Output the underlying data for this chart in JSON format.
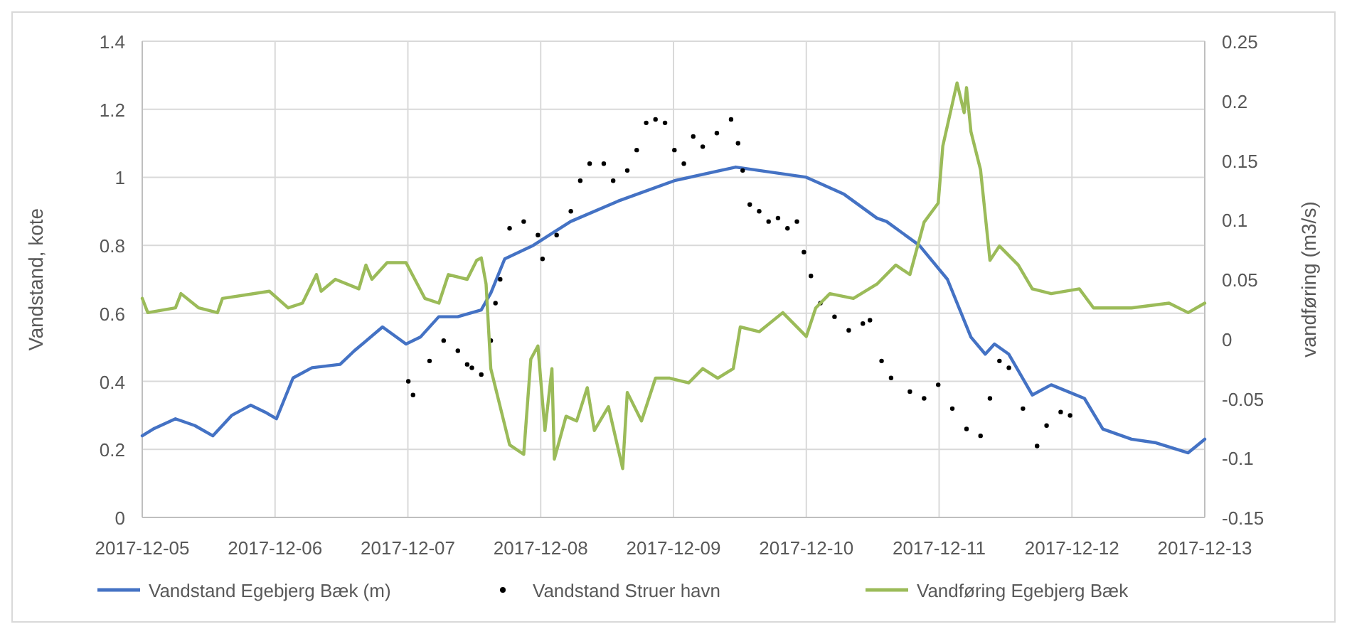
{
  "chart_data": {
    "type": "line",
    "ylabel": "Vandstand, kote",
    "y2label": "vandføring (m3/s)",
    "xlim": [
      "2017-12-05",
      "2017-12-13"
    ],
    "xticks": [
      "2017-12-05",
      "2017-12-06",
      "2017-12-07",
      "2017-12-08",
      "2017-12-09",
      "2017-12-10",
      "2017-12-11",
      "2017-12-12",
      "2017-12-13"
    ],
    "ylim": [
      0,
      1.4
    ],
    "yticks": [
      0,
      0.2,
      0.4,
      0.6,
      0.8,
      1,
      1.2,
      1.4
    ],
    "y2lim": [
      -0.15,
      0.25
    ],
    "y2ticks": [
      -0.15,
      -0.1,
      -0.05,
      0,
      0.05,
      0.1,
      0.15,
      0.2,
      0.25
    ],
    "grid": true,
    "legend": "bottom",
    "series": [
      {
        "name": "Vandstand Egebjerg Bæk (m)",
        "color": "#4472c4",
        "x": [
          "2017-12-05T00:00",
          "2017-12-05T02:00",
          "2017-12-05T06:00",
          "2017-12-05T09:30",
          "2017-12-05T12:45",
          "2017-12-05T16:10",
          "2017-12-05T19:35",
          "2017-12-05T22:10",
          "2017-12-06T00:15",
          "2017-12-06T03:15",
          "2017-12-06T06:40",
          "2017-12-06T11:45",
          "2017-12-06T14:20",
          "2017-12-06T19:25",
          "2017-12-06T23:40",
          "2017-12-07T02:15",
          "2017-12-07T05:35",
          "2017-12-07T09:00",
          "2017-12-07T13:15",
          "2017-12-07T15:00",
          "2017-12-07T17:30",
          "2017-12-07T22:40",
          "2017-12-08T05:25",
          "2017-12-08T14:00",
          "2017-12-09T00:10",
          "2017-12-09T11:15",
          "2017-12-10T00:00",
          "2017-12-10T06:50",
          "2017-12-10T12:45",
          "2017-12-10T14:30",
          "2017-12-10T20:25",
          "2017-12-11T01:30",
          "2017-12-11T05:45",
          "2017-12-11T08:20",
          "2017-12-11T10:00",
          "2017-12-11T12:35",
          "2017-12-11T16:50",
          "2017-12-11T20:15",
          "2017-12-12T02:15",
          "2017-12-12T05:35",
          "2017-12-12T10:45",
          "2017-12-12T15:00",
          "2017-12-12T21:00",
          "2017-12-13T00:00"
        ],
        "values": [
          0.24,
          0.26,
          0.29,
          0.27,
          0.24,
          0.3,
          0.33,
          0.31,
          0.29,
          0.41,
          0.44,
          0.45,
          0.49,
          0.56,
          0.51,
          0.53,
          0.59,
          0.59,
          0.61,
          0.66,
          0.76,
          0.8,
          0.87,
          0.93,
          0.99,
          1.03,
          1.0,
          0.95,
          0.88,
          0.87,
          0.8,
          0.7,
          0.53,
          0.48,
          0.51,
          0.48,
          0.36,
          0.39,
          0.35,
          0.26,
          0.23,
          0.22,
          0.19,
          0.23
        ]
      },
      {
        "name": "Vandstand Struer havn",
        "type": "scatter",
        "color": "#000000",
        "marker": "circle",
        "x": [
          "2017-12-07T00:05",
          "2017-12-07T00:56",
          "2017-12-07T03:55",
          "2017-12-07T06:28",
          "2017-12-07T09:02",
          "2017-12-07T10:43",
          "2017-12-07T11:34",
          "2017-12-07T13:16",
          "2017-12-07T14:59",
          "2017-12-07T15:50",
          "2017-12-07T16:41",
          "2017-12-07T18:23",
          "2017-12-07T20:56",
          "2017-12-07T23:30",
          "2017-12-08T00:20",
          "2017-12-08T02:53",
          "2017-12-08T05:27",
          "2017-12-08T07:09",
          "2017-12-08T08:51",
          "2017-12-08T11:24",
          "2017-12-08T13:06",
          "2017-12-08T15:39",
          "2017-12-08T17:21",
          "2017-12-08T19:04",
          "2017-12-08T20:45",
          "2017-12-08T22:28",
          "2017-12-09T00:10",
          "2017-12-09T01:52",
          "2017-12-09T03:34",
          "2017-12-09T05:17",
          "2017-12-09T07:50",
          "2017-12-09T10:24",
          "2017-12-09T11:40",
          "2017-12-09T12:30",
          "2017-12-09T13:47",
          "2017-12-09T15:29",
          "2017-12-09T17:11",
          "2017-12-09T18:53",
          "2017-12-09T20:36",
          "2017-12-09T22:18",
          "2017-12-09T23:34",
          "2017-12-10T00:50",
          "2017-12-10T02:33",
          "2017-12-10T05:06",
          "2017-12-10T07:40",
          "2017-12-10T10:13",
          "2017-12-10T11:30",
          "2017-12-10T13:36",
          "2017-12-10T15:19",
          "2017-12-10T18:43",
          "2017-12-10T21:17",
          "2017-12-10T23:50",
          "2017-12-11T02:23",
          "2017-12-11T04:57",
          "2017-12-11T07:29",
          "2017-12-11T09:11",
          "2017-12-11T10:54",
          "2017-12-11T12:36",
          "2017-12-11T15:09",
          "2017-12-11T17:42",
          "2017-12-11T19:25",
          "2017-12-11T21:58",
          "2017-12-11T23:40"
        ],
        "values": [
          0.4,
          0.36,
          0.46,
          0.52,
          0.49,
          0.45,
          0.44,
          0.42,
          0.52,
          0.63,
          0.7,
          0.85,
          0.87,
          0.83,
          0.76,
          0.83,
          0.9,
          0.99,
          1.04,
          1.04,
          0.99,
          1.02,
          1.08,
          1.16,
          1.17,
          1.16,
          1.08,
          1.04,
          1.12,
          1.09,
          1.13,
          1.17,
          1.1,
          1.02,
          0.92,
          0.9,
          0.87,
          0.88,
          0.85,
          0.87,
          0.78,
          0.71,
          0.63,
          0.59,
          0.55,
          0.57,
          0.58,
          0.46,
          0.41,
          0.37,
          0.35,
          0.39,
          0.32,
          0.26,
          0.24,
          0.35,
          0.46,
          0.44,
          0.32,
          0.21,
          0.27,
          0.31,
          0.3
        ]
      },
      {
        "name": "Vandføring Egebjerg Bæk",
        "axis": "y2",
        "color": "#9bbb59",
        "x": [
          "2017-12-05T00:00",
          "2017-12-05T01:00",
          "2017-12-05T06:00",
          "2017-12-05T07:00",
          "2017-12-05T10:13",
          "2017-12-05T13:36",
          "2017-12-05T14:30",
          "2017-12-05T22:58",
          "2017-12-06T02:22",
          "2017-12-06T04:57",
          "2017-12-06T07:29",
          "2017-12-06T08:20",
          "2017-12-06T10:54",
          "2017-12-06T15:09",
          "2017-12-06T16:25",
          "2017-12-06T17:30",
          "2017-12-06T20:15",
          "2017-12-06T23:40",
          "2017-12-07T03:04",
          "2017-12-07T05:37",
          "2017-12-07T07:19",
          "2017-12-07T10:43",
          "2017-12-07T12:26",
          "2017-12-07T13:16",
          "2017-12-07T14:08",
          "2017-12-07T14:59",
          "2017-12-07T16:41",
          "2017-12-07T18:23",
          "2017-12-07T20:56",
          "2017-12-07T22:13",
          "2017-12-07T23:30",
          "2017-12-08T00:46",
          "2017-12-08T02:02",
          "2017-12-08T02:28",
          "2017-12-08T04:35",
          "2017-12-08T06:30",
          "2017-12-08T08:25",
          "2017-12-08T09:42",
          "2017-12-08T12:15",
          "2017-12-08T14:49",
          "2017-12-08T15:39",
          "2017-12-08T18:13",
          "2017-12-08T20:45",
          "2017-12-08T23:19",
          "2017-12-09T02:44",
          "2017-12-09T05:17",
          "2017-12-09T08:00",
          "2017-12-09T10:48",
          "2017-12-09T12:04",
          "2017-12-09T15:29",
          "2017-12-09T19:45",
          "2017-12-10T00:00",
          "2017-12-10T01:42",
          "2017-12-10T04:15",
          "2017-12-10T08:30",
          "2017-12-10T12:46",
          "2017-12-10T16:10",
          "2017-12-10T18:43",
          "2017-12-10T21:17",
          "2017-12-10T23:50",
          "2017-12-11T00:40",
          "2017-12-11T03:14",
          "2017-12-11T04:31",
          "2017-12-11T04:57",
          "2017-12-11T05:45",
          "2017-12-11T07:29",
          "2017-12-11T09:11",
          "2017-12-11T10:54",
          "2017-12-11T14:18",
          "2017-12-11T16:50",
          "2017-12-11T20:15",
          "2017-12-12T01:20",
          "2017-12-12T03:54",
          "2017-12-12T10:45",
          "2017-12-12T17:33",
          "2017-12-12T21:00",
          "2017-12-13T00:00"
        ],
        "values": [
          0.034,
          0.022,
          0.026,
          0.038,
          0.026,
          0.022,
          0.034,
          0.04,
          0.026,
          0.03,
          0.054,
          0.04,
          0.05,
          0.042,
          0.062,
          0.05,
          0.064,
          0.064,
          0.034,
          0.03,
          0.054,
          0.05,
          0.066,
          0.068,
          0.046,
          -0.025,
          -0.057,
          -0.089,
          -0.097,
          -0.017,
          -0.006,
          -0.077,
          -0.025,
          -0.101,
          -0.065,
          -0.069,
          -0.041,
          -0.077,
          -0.057,
          -0.109,
          -0.045,
          -0.069,
          -0.033,
          -0.033,
          -0.037,
          -0.025,
          -0.033,
          -0.025,
          0.01,
          0.006,
          0.022,
          0.002,
          0.026,
          0.038,
          0.034,
          0.046,
          0.062,
          0.054,
          0.098,
          0.114,
          0.162,
          0.215,
          0.19,
          0.211,
          0.174,
          0.142,
          0.066,
          0.078,
          0.062,
          0.042,
          0.038,
          0.042,
          0.026,
          0.026,
          0.03,
          0.022,
          0.03
        ]
      }
    ]
  }
}
